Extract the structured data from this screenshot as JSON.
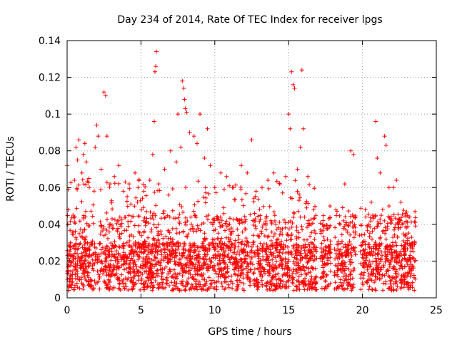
{
  "chart_data": {
    "type": "scatter",
    "title": "Day 234 of 2014, Rate Of TEC Index for receiver lpgs",
    "xlabel": "GPS time / hours",
    "ylabel": "ROTI / TECUs",
    "xlim": [
      0,
      25
    ],
    "ylim": [
      0,
      0.14
    ],
    "xticks": [
      0,
      5,
      10,
      15,
      20,
      25
    ],
    "xtick_labels": [
      "0",
      "5",
      "10",
      "15",
      "20",
      "25"
    ],
    "yticks": [
      0,
      0.02,
      0.04,
      0.06,
      0.08,
      0.1,
      0.12,
      0.14
    ],
    "ytick_labels": [
      "0",
      "0.02",
      "0.04",
      "0.06",
      "0.08",
      "0.1",
      "0.12",
      "0.14"
    ],
    "grid": true,
    "marker": "+",
    "color": "#ff0000",
    "series": [
      {
        "name": "ROTI",
        "points": [
          [
            0.0,
            0.072
          ],
          [
            0.2,
            0.028
          ],
          [
            0.4,
            0.045
          ],
          [
            0.5,
            0.064
          ],
          [
            0.6,
            0.082
          ],
          [
            0.7,
            0.075
          ],
          [
            0.8,
            0.086
          ],
          [
            1.0,
            0.068
          ],
          [
            1.1,
            0.078
          ],
          [
            1.2,
            0.084
          ],
          [
            1.3,
            0.074
          ],
          [
            1.5,
            0.06
          ],
          [
            1.9,
            0.082
          ],
          [
            2.0,
            0.094
          ],
          [
            2.1,
            0.088
          ],
          [
            2.3,
            0.07
          ],
          [
            2.5,
            0.112
          ],
          [
            2.6,
            0.11
          ],
          [
            2.7,
            0.088
          ],
          [
            2.9,
            0.062
          ],
          [
            3.2,
            0.066
          ],
          [
            3.5,
            0.072
          ],
          [
            3.8,
            0.058
          ],
          [
            4.2,
            0.062
          ],
          [
            4.6,
            0.068
          ],
          [
            4.8,
            0.06
          ],
          [
            5.2,
            0.058
          ],
          [
            5.6,
            0.064
          ],
          [
            5.8,
            0.078
          ],
          [
            5.9,
            0.096
          ],
          [
            5.95,
            0.123
          ],
          [
            6.0,
            0.126
          ],
          [
            6.05,
            0.134
          ],
          [
            6.2,
            0.062
          ],
          [
            6.6,
            0.07
          ],
          [
            7.0,
            0.08
          ],
          [
            7.4,
            0.074
          ],
          [
            7.5,
            0.1
          ],
          [
            7.7,
            0.082
          ],
          [
            7.8,
            0.118
          ],
          [
            7.9,
            0.114
          ],
          [
            7.95,
            0.108
          ],
          [
            8.0,
            0.103
          ],
          [
            8.1,
            0.101
          ],
          [
            8.3,
            0.09
          ],
          [
            8.6,
            0.088
          ],
          [
            8.8,
            0.084
          ],
          [
            9.0,
            0.1
          ],
          [
            9.3,
            0.076
          ],
          [
            9.5,
            0.092
          ],
          [
            9.7,
            0.072
          ],
          [
            10.0,
            0.06
          ],
          [
            10.4,
            0.068
          ],
          [
            10.8,
            0.066
          ],
          [
            11.2,
            0.06
          ],
          [
            11.8,
            0.072
          ],
          [
            12.2,
            0.068
          ],
          [
            12.5,
            0.086
          ],
          [
            12.8,
            0.058
          ],
          [
            13.2,
            0.06
          ],
          [
            13.6,
            0.064
          ],
          [
            14.0,
            0.068
          ],
          [
            14.4,
            0.062
          ],
          [
            14.8,
            0.066
          ],
          [
            15.0,
            0.1
          ],
          [
            15.1,
            0.092
          ],
          [
            15.2,
            0.123
          ],
          [
            15.3,
            0.116
          ],
          [
            15.4,
            0.114
          ],
          [
            15.6,
            0.07
          ],
          [
            15.8,
            0.082
          ],
          [
            15.9,
            0.124
          ],
          [
            16.0,
            0.092
          ],
          [
            16.3,
            0.066
          ],
          [
            16.7,
            0.048
          ],
          [
            17.2,
            0.036
          ],
          [
            17.8,
            0.05
          ],
          [
            18.2,
            0.048
          ],
          [
            18.8,
            0.062
          ],
          [
            19.2,
            0.08
          ],
          [
            19.4,
            0.078
          ],
          [
            19.8,
            0.034
          ],
          [
            20.2,
            0.048
          ],
          [
            20.6,
            0.052
          ],
          [
            20.9,
            0.096
          ],
          [
            21.0,
            0.076
          ],
          [
            21.2,
            0.068
          ],
          [
            21.5,
            0.088
          ],
          [
            21.6,
            0.083
          ],
          [
            21.8,
            0.06
          ],
          [
            22.1,
            0.06
          ],
          [
            22.3,
            0.064
          ],
          [
            22.6,
            0.052
          ],
          [
            22.9,
            0.046
          ],
          [
            23.2,
            0.044
          ],
          [
            23.4,
            0.03
          ]
        ]
      }
    ]
  }
}
